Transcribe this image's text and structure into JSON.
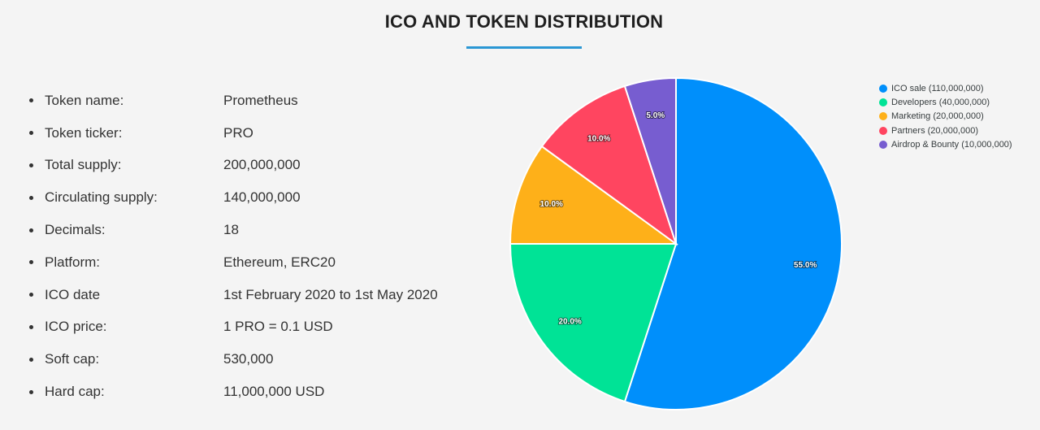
{
  "header": {
    "title": "ICO AND TOKEN DISTRIBUTION"
  },
  "token_info": [
    {
      "label": "Token name:",
      "value": "Prometheus"
    },
    {
      "label": "Token ticker:",
      "value": "PRO"
    },
    {
      "label": "Total supply:",
      "value": "200,000,000"
    },
    {
      "label": "Circulating supply:",
      "value": "140,000,000"
    },
    {
      "label": "Decimals:",
      "value": "18"
    },
    {
      "label": "Platform:",
      "value": "Ethereum, ERC20"
    },
    {
      "label": "ICO date",
      "value": "1st February 2020 to 1st May 2020"
    },
    {
      "label": "ICO price:",
      "value": "1 PRO = 0.1 USD"
    },
    {
      "label": "Soft cap:",
      "value": "530,000"
    },
    {
      "label": "Hard cap:",
      "value": "11,000,000 USD"
    }
  ],
  "colors": {
    "accent_underline": "#2a97d4",
    "background": "#f4f4f4"
  },
  "chart_data": {
    "type": "pie",
    "title": "",
    "legend_position": "top-right",
    "slices": [
      {
        "legend": "ICO sale (110,000,000)",
        "value": 110000000,
        "percent_label": "55.0%",
        "color": "#008ffb"
      },
      {
        "legend": "Developers (40,000,000)",
        "value": 40000000,
        "percent_label": "20.0%",
        "color": "#00e396"
      },
      {
        "legend": "Marketing (20,000,000)",
        "value": 20000000,
        "percent_label": "10.0%",
        "color": "#feb019"
      },
      {
        "legend": "Partners (20,000,000)",
        "value": 20000000,
        "percent_label": "10.0%",
        "color": "#ff4560"
      },
      {
        "legend": "Airdrop & Bounty (10,000,000)",
        "value": 10000000,
        "percent_label": "5.0%",
        "color": "#775dd0"
      }
    ]
  }
}
